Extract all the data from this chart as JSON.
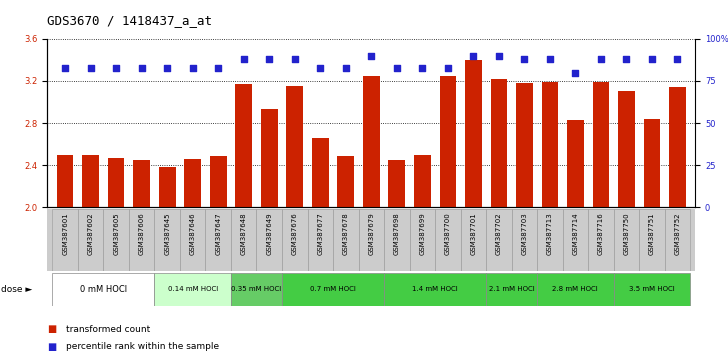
{
  "title": "GDS3670 / 1418437_a_at",
  "samples": [
    "GSM387601",
    "GSM387602",
    "GSM387605",
    "GSM387606",
    "GSM387645",
    "GSM387646",
    "GSM387647",
    "GSM387648",
    "GSM387649",
    "GSM387676",
    "GSM387677",
    "GSM387678",
    "GSM387679",
    "GSM387698",
    "GSM387699",
    "GSM387700",
    "GSM387701",
    "GSM387702",
    "GSM387703",
    "GSM387713",
    "GSM387714",
    "GSM387716",
    "GSM387750",
    "GSM387751",
    "GSM387752"
  ],
  "bar_values": [
    2.5,
    2.5,
    2.47,
    2.45,
    2.38,
    2.46,
    2.49,
    3.17,
    2.93,
    3.15,
    2.66,
    2.49,
    3.25,
    2.45,
    2.5,
    3.25,
    3.4,
    3.22,
    3.18,
    3.19,
    2.83,
    3.19,
    3.1,
    2.84,
    3.14
  ],
  "dot_values": [
    83,
    83,
    83,
    83,
    83,
    83,
    83,
    88,
    88,
    88,
    83,
    83,
    90,
    83,
    83,
    83,
    90,
    90,
    88,
    88,
    80,
    88,
    88,
    88,
    88
  ],
  "dose_groups": [
    {
      "label": "0 mM HOCl",
      "start": 0,
      "end": 4
    },
    {
      "label": "0.14 mM HOCl",
      "start": 4,
      "end": 7
    },
    {
      "label": "0.35 mM HOCl",
      "start": 7,
      "end": 9
    },
    {
      "label": "0.7 mM HOCl",
      "start": 9,
      "end": 13
    },
    {
      "label": "1.4 mM HOCl",
      "start": 13,
      "end": 17
    },
    {
      "label": "2.1 mM HOCl",
      "start": 17,
      "end": 19
    },
    {
      "label": "2.8 mM HOCl",
      "start": 19,
      "end": 22
    },
    {
      "label": "3.5 mM HOCl",
      "start": 22,
      "end": 25
    }
  ],
  "dose_colors": [
    "#ffffff",
    "#ccffcc",
    "#66cc66",
    "#44cc44",
    "#44cc44",
    "#44cc44",
    "#44cc44",
    "#44cc44"
  ],
  "bar_color": "#cc2200",
  "dot_color": "#2222cc",
  "ylim_left": [
    2.0,
    3.6
  ],
  "ylim_right": [
    0,
    100
  ],
  "yticks_left": [
    2.0,
    2.4,
    2.8,
    3.2,
    3.6
  ],
  "yticks_right": [
    0,
    25,
    50,
    75,
    100
  ],
  "title_fontsize": 9,
  "tick_fontsize": 6,
  "label_fontsize": 7
}
